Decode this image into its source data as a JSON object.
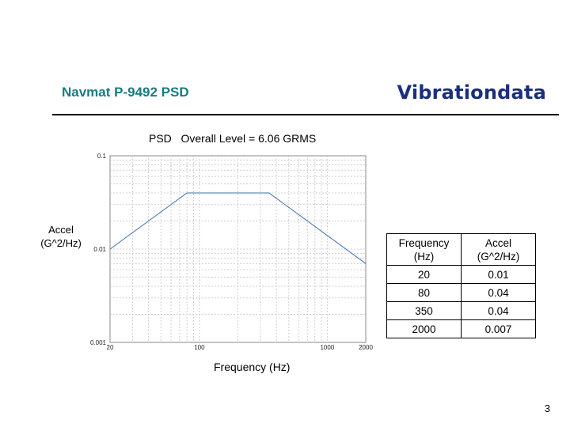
{
  "header": {
    "title": "Navmat P-9492 PSD",
    "brand": "Vibrationdata"
  },
  "chart_data": {
    "type": "line",
    "title": "PSD   Overall Level = 6.06 GRMS",
    "xlabel": "Frequency (Hz)",
    "ylabel": [
      "Accel",
      "(G^2/Hz)"
    ],
    "x_scale": "log",
    "y_scale": "log",
    "xlim": [
      20,
      2000
    ],
    "ylim": [
      0.001,
      0.1
    ],
    "grid": true,
    "x_ticks": [
      {
        "value": 20,
        "label": "20"
      },
      {
        "value": 100,
        "label": "100"
      },
      {
        "value": 1000,
        "label": "1000"
      },
      {
        "value": 2000,
        "label": "2000"
      }
    ],
    "y_ticks": [
      {
        "value": 0.001,
        "label": "0.001"
      },
      {
        "value": 0.01,
        "label": "0.01"
      },
      {
        "value": 0.1,
        "label": "0.1"
      }
    ],
    "series": [
      {
        "x": [
          20,
          80,
          350,
          2000
        ],
        "y": [
          0.01,
          0.04,
          0.04,
          0.007
        ],
        "color": "#3f6fb5"
      }
    ]
  },
  "table": {
    "headers": [
      [
        "Frequency",
        "(Hz)"
      ],
      [
        "Accel",
        "(G^2/Hz)"
      ]
    ],
    "rows": [
      [
        "20",
        "0.01"
      ],
      [
        "80",
        "0.04"
      ],
      [
        "350",
        "0.04"
      ],
      [
        "2000",
        "0.007"
      ]
    ]
  },
  "page_number": "3"
}
